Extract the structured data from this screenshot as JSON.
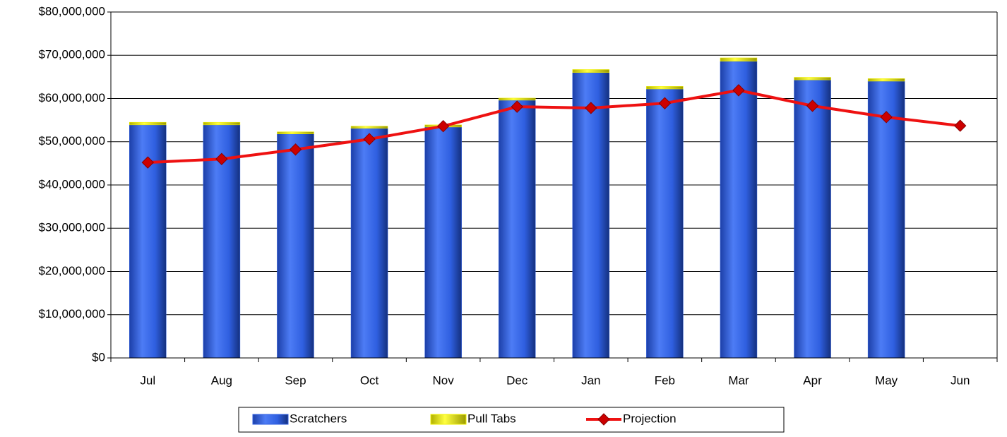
{
  "chart_data": {
    "type": "bar",
    "categories": [
      "Jul",
      "Aug",
      "Sep",
      "Oct",
      "Nov",
      "Dec",
      "Jan",
      "Feb",
      "Mar",
      "Apr",
      "May",
      "Jun"
    ],
    "series": [
      {
        "name": "Scratchers",
        "color": "#2f5fe0",
        "stacked": true,
        "values": [
          53900000,
          53900000,
          51800000,
          53100000,
          53400000,
          59600000,
          66000000,
          62200000,
          68600000,
          64300000,
          64000000,
          null
        ]
      },
      {
        "name": "Pull Tabs",
        "color": "#f2f200",
        "stacked": true,
        "values": [
          600000,
          600000,
          500000,
          500000,
          500000,
          500000,
          700000,
          600000,
          800000,
          600000,
          600000,
          null
        ]
      },
      {
        "name": "Projection",
        "color": "#ee1111",
        "type": "line",
        "marker_color": "#cc0000",
        "values": [
          45200000,
          46000000,
          48200000,
          50600000,
          53600000,
          58100000,
          57800000,
          58900000,
          61900000,
          58300000,
          55700000,
          53700000
        ]
      }
    ],
    "ylim": [
      0,
      80000000
    ],
    "yticks": [
      {
        "value": 0,
        "label": "$0"
      },
      {
        "value": 10000000,
        "label": "$10,000,000"
      },
      {
        "value": 20000000,
        "label": "$20,000,000"
      },
      {
        "value": 30000000,
        "label": "$30,000,000"
      },
      {
        "value": 40000000,
        "label": "$40,000,000"
      },
      {
        "value": 50000000,
        "label": "$50,000,000"
      },
      {
        "value": 60000000,
        "label": "$60,000,000"
      },
      {
        "value": 70000000,
        "label": "$70,000,000"
      },
      {
        "value": 80000000,
        "label": "$80,000,000"
      }
    ],
    "grid": true,
    "legend": "bottom"
  }
}
